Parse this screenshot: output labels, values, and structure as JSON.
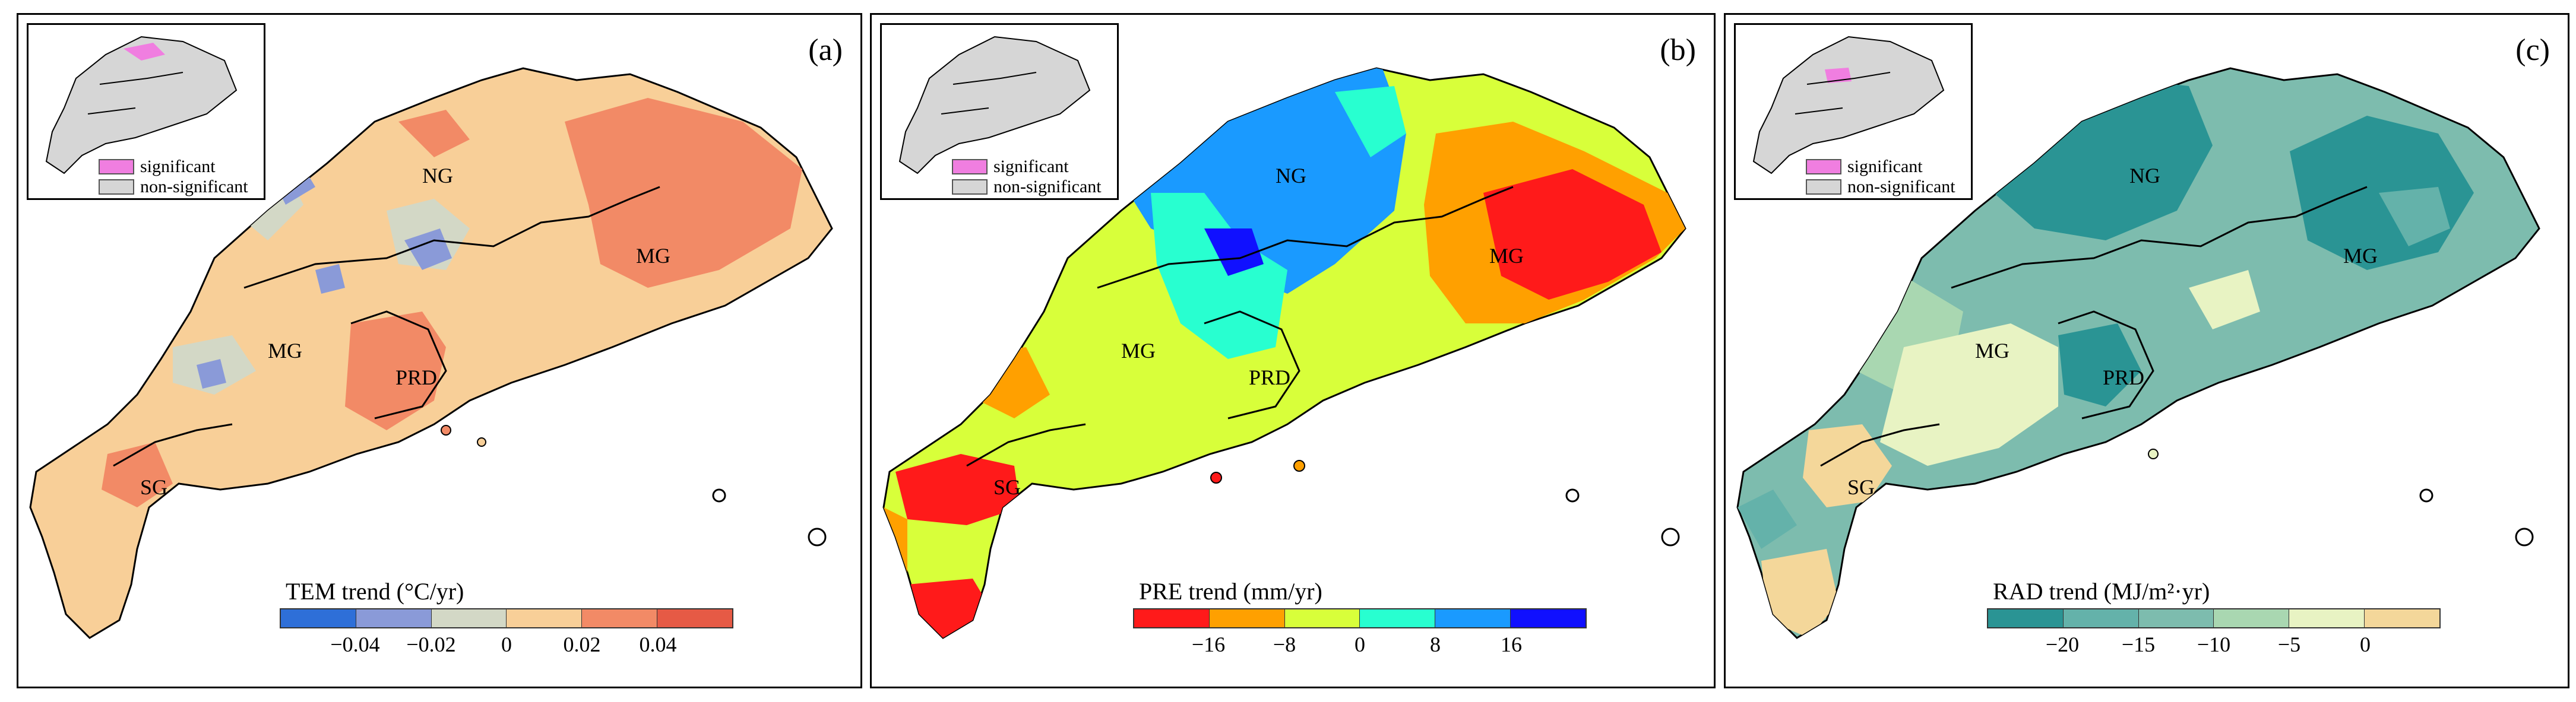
{
  "panels": [
    {
      "id": "a",
      "label": "(a)",
      "regions": [
        "NG",
        "MG",
        "MG",
        "PRD",
        "SG"
      ],
      "colorbar": {
        "title": "TEM trend (°C/yr)",
        "ticks": [
          "−0.04",
          "−0.02",
          "0",
          "0.02",
          "0.04"
        ],
        "colors": [
          "#2e6fd8",
          "#8a9ad8",
          "#d3d8c6",
          "#f8cf98",
          "#f28a66",
          "#e65a45"
        ]
      },
      "legend": {
        "significant": "significant",
        "non_significant": "non-significant"
      },
      "base_color": "#f8cf98",
      "accent_colors": [
        "#f28a66",
        "#8a9ad8",
        "#d3d8c6"
      ]
    },
    {
      "id": "b",
      "label": "(b)",
      "regions": [
        "NG",
        "MG",
        "MG",
        "PRD",
        "SG"
      ],
      "colorbar": {
        "title": "PRE trend (mm/yr)",
        "ticks": [
          "−16",
          "−8",
          "0",
          "8",
          "16"
        ],
        "colors": [
          "#ff1a1a",
          "#ffa000",
          "#d8ff3a",
          "#28ffd0",
          "#1a9aff",
          "#1010ff"
        ]
      },
      "legend": {
        "significant": "significant",
        "non_significant": "non-significant"
      },
      "base_color": "#d8ff3a",
      "accent_colors": [
        "#1a9aff",
        "#28ffd0",
        "#ff1a1a",
        "#ffa000"
      ]
    },
    {
      "id": "c",
      "label": "(c)",
      "regions": [
        "NG",
        "MG",
        "MG",
        "PRD",
        "SG"
      ],
      "colorbar": {
        "title": "RAD trend (MJ/m²·yr)",
        "ticks": [
          "−20",
          "−15",
          "−10",
          "−5",
          "0"
        ],
        "colors": [
          "#2a9494",
          "#64b2aa",
          "#7dbcae",
          "#a9d7b1",
          "#e8f3c3",
          "#f4d79a"
        ]
      },
      "legend": {
        "significant": "significant",
        "non_significant": "non-significant"
      },
      "base_color": "#7dbcae",
      "accent_colors": [
        "#2a9494",
        "#a9d7b1",
        "#e8f3c3",
        "#f4d79a"
      ]
    }
  ]
}
